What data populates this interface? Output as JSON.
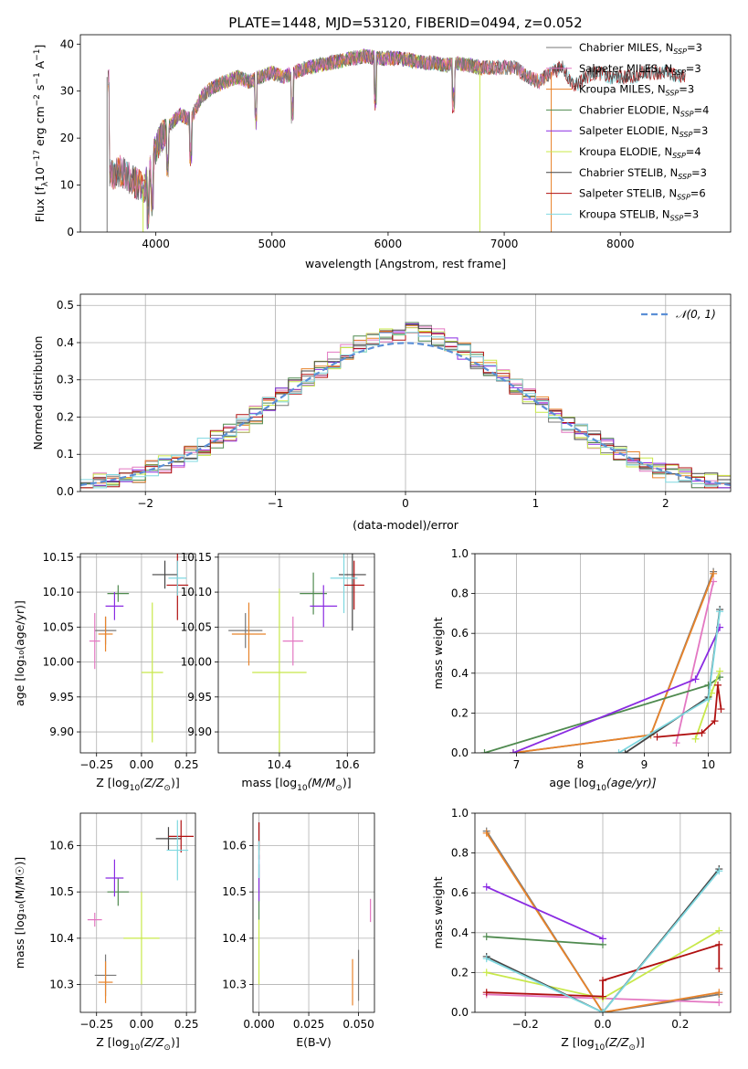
{
  "figure_title": "PLATE=1448, MJD=53120, FIBERID=0494, z=0.052",
  "colors": {
    "Chabrier MILES": "#777777",
    "Salpeter MILES": "#e377c2",
    "Kroupa MILES": "#e8832a",
    "Chabrier ELODIE": "#4f8a4f",
    "Salpeter ELODIE": "#8a2be2",
    "Kroupa ELODIE": "#c8e84a",
    "Chabrier STELIB": "#444444",
    "Salpeter STELIB": "#b01010",
    "Kroupa STELIB": "#7fd8e0",
    "gauss": "#5b8fd6"
  },
  "chart_data": [
    {
      "id": "spectrum",
      "type": "line",
      "xlabel": "wavelength [Angstrom, rest frame]",
      "ylabel": "Flux [f_λ 10^-17 erg cm^-2 s^-1 A^-1]",
      "xlim": [
        3350,
        8950
      ],
      "ylim": [
        0,
        42
      ],
      "xticks": [
        4000,
        5000,
        6000,
        7000,
        8000
      ],
      "yticks": [
        0,
        10,
        20,
        30,
        40
      ],
      "legend_position": "top-right",
      "legend": [
        {
          "name": "Chabrier MILES",
          "label_main": "Chabrier MILES, N",
          "sub": "SSP",
          "tail": "=3"
        },
        {
          "name": "Salpeter MILES",
          "label_main": "Salpeter MILES, N",
          "sub": "SSP",
          "tail": "=3"
        },
        {
          "name": "Kroupa MILES",
          "label_main": "Kroupa MILES, N",
          "sub": "SSP",
          "tail": "=3"
        },
        {
          "name": "Chabrier ELODIE",
          "label_main": "Chabrier ELODIE, N",
          "sub": "SSP",
          "tail": "=4"
        },
        {
          "name": "Salpeter ELODIE",
          "label_main": "Salpeter ELODIE, N",
          "sub": "SSP",
          "tail": "=3"
        },
        {
          "name": "Kroupa ELODIE",
          "label_main": "Kroupa ELODIE, N",
          "sub": "SSP",
          "tail": "=4"
        },
        {
          "name": "Chabrier STELIB",
          "label_main": "Chabrier STELIB, N",
          "sub": "SSP",
          "tail": "=3"
        },
        {
          "name": "Salpeter STELIB",
          "label_main": "Salpeter STELIB, N",
          "sub": "SSP",
          "tail": "=6"
        },
        {
          "name": "Kroupa STELIB",
          "label_main": "Kroupa STELIB, N",
          "sub": "SSP",
          "tail": "=3"
        }
      ],
      "continuum": [
        [
          3600,
          12
        ],
        [
          3700,
          13
        ],
        [
          3800,
          11
        ],
        [
          3900,
          9
        ],
        [
          3950,
          13
        ],
        [
          4000,
          18
        ],
        [
          4100,
          22
        ],
        [
          4200,
          25
        ],
        [
          4300,
          24
        ],
        [
          4400,
          29
        ],
        [
          4500,
          31
        ],
        [
          4600,
          32
        ],
        [
          4700,
          33
        ],
        [
          4800,
          32
        ],
        [
          4900,
          33
        ],
        [
          5000,
          34
        ],
        [
          5100,
          33
        ],
        [
          5200,
          34
        ],
        [
          5300,
          35
        ],
        [
          5400,
          35.5
        ],
        [
          5500,
          36
        ],
        [
          5600,
          36.5
        ],
        [
          5700,
          37
        ],
        [
          5800,
          37.5
        ],
        [
          5900,
          37
        ],
        [
          6000,
          37
        ],
        [
          6100,
          37
        ],
        [
          6200,
          36.5
        ],
        [
          6300,
          36
        ],
        [
          6400,
          36
        ],
        [
          6500,
          35.5
        ],
        [
          6600,
          36
        ],
        [
          6700,
          35.5
        ],
        [
          6800,
          35
        ],
        [
          6900,
          35
        ],
        [
          7000,
          35
        ],
        [
          7100,
          35
        ],
        [
          7200,
          33
        ],
        [
          7300,
          32
        ],
        [
          7400,
          34
        ],
        [
          7500,
          35
        ],
        [
          7600,
          31
        ],
        [
          7700,
          33
        ],
        [
          7800,
          34
        ],
        [
          7900,
          33
        ],
        [
          8000,
          33
        ],
        [
          8100,
          33
        ],
        [
          8200,
          34
        ],
        [
          8300,
          34
        ],
        [
          8400,
          34
        ],
        [
          8500,
          33
        ]
      ],
      "absorption_lines": [
        3934,
        3969,
        4102,
        4300,
        4861,
        5175,
        5890,
        6563
      ],
      "spikes": [
        {
          "series": "Kroupa ELODIE",
          "x": 6790,
          "y": 0
        },
        {
          "series": "Kroupa MILES",
          "x": 7405,
          "y": 0
        },
        {
          "series": "Kroupa ELODIE",
          "x": 3890,
          "y": 0
        },
        {
          "series": "Chabrier MILES",
          "x": 3580,
          "y": 0
        }
      ]
    },
    {
      "id": "residuals",
      "type": "bar",
      "xlabel": "(data-model)/error",
      "ylabel": "Normed distribution",
      "xlim": [
        -2.5,
        2.5
      ],
      "ylim": [
        0,
        0.53
      ],
      "xticks": [
        -2,
        -1,
        0,
        1,
        2
      ],
      "yticks": [
        0.0,
        0.1,
        0.2,
        0.3,
        0.4,
        0.5
      ],
      "grid": true,
      "legend_position": "top-right",
      "legend": [
        {
          "name": "gauss",
          "label": "𝒩(0, 1)"
        }
      ],
      "bin_width": 0.1
    },
    {
      "id": "age_vs_Z",
      "type": "scatter",
      "xlabel_main": "Z [log",
      "xlabel_sub": "10",
      "xlabel_tail": "(Z/Z",
      "ylabel": "age  [log₁₀(age/yr)]",
      "xlim": [
        -0.34,
        0.3
      ],
      "ylim": [
        9.87,
        10.155
      ],
      "xticks": [
        -0.25,
        0.0,
        0.25
      ],
      "xticklabels": [
        "−0.25",
        "0.00",
        "0.25"
      ],
      "yticks": [
        9.9,
        9.95,
        10.0,
        10.05,
        10.1,
        10.15
      ],
      "points": [
        {
          "series": "Chabrier MILES",
          "x": -0.2,
          "y": 10.045,
          "xerr": 0.06,
          "yerr": 0.02
        },
        {
          "series": "Salpeter MILES",
          "x": -0.26,
          "y": 10.03,
          "xerr": 0.03,
          "yerr": 0.04
        },
        {
          "series": "Kroupa MILES",
          "x": -0.2,
          "y": 10.04,
          "xerr": 0.04,
          "yerr": 0.025
        },
        {
          "series": "Chabrier ELODIE",
          "x": -0.13,
          "y": 10.098,
          "xerr": 0.06,
          "yerr": 0.012
        },
        {
          "series": "Salpeter ELODIE",
          "x": -0.15,
          "y": 10.08,
          "xerr": 0.05,
          "yerr": 0.02
        },
        {
          "series": "Kroupa ELODIE",
          "x": 0.06,
          "y": 9.985,
          "xerr": 0.06,
          "yerr": 0.1
        },
        {
          "series": "Chabrier STELIB",
          "x": 0.13,
          "y": 10.125,
          "xerr": 0.07,
          "yerr": 0.02
        },
        {
          "series": "Salpeter STELIB",
          "x": 0.2,
          "y": 10.11,
          "xerr": 0.06,
          "yerr": 0.05
        },
        {
          "series": "Kroupa STELIB",
          "x": 0.2,
          "y": 10.12,
          "xerr": 0.05,
          "yerr": 0.025
        }
      ]
    },
    {
      "id": "age_vs_mass",
      "type": "scatter",
      "xlabel_main": "mass [log",
      "xlabel_sub": "10",
      "xlabel_tail": "(M/M",
      "xlim": [
        10.22,
        10.68
      ],
      "ylim": [
        9.87,
        10.155
      ],
      "xticks": [
        10.4,
        10.6
      ],
      "yticks": [
        9.9,
        9.95,
        10.0,
        10.05,
        10.1,
        10.15
      ],
      "points": [
        {
          "series": "Chabrier MILES",
          "x": 10.3,
          "y": 10.045,
          "xerr": 0.05,
          "yerr": 0.025
        },
        {
          "series": "Salpeter MILES",
          "x": 10.44,
          "y": 10.03,
          "xerr": 0.03,
          "yerr": 0.035
        },
        {
          "series": "Kroupa MILES",
          "x": 10.31,
          "y": 10.04,
          "xerr": 0.05,
          "yerr": 0.045
        },
        {
          "series": "Chabrier ELODIE",
          "x": 10.5,
          "y": 10.098,
          "xerr": 0.04,
          "yerr": 0.03
        },
        {
          "series": "Salpeter ELODIE",
          "x": 10.53,
          "y": 10.08,
          "xerr": 0.04,
          "yerr": 0.03
        },
        {
          "series": "Kroupa ELODIE",
          "x": 10.4,
          "y": 9.985,
          "xerr": 0.08,
          "yerr": 0.12
        },
        {
          "series": "Chabrier STELIB",
          "x": 10.615,
          "y": 10.125,
          "xerr": 0.04,
          "yerr": 0.08
        },
        {
          "series": "Salpeter STELIB",
          "x": 10.62,
          "y": 10.11,
          "xerr": 0.03,
          "yerr": 0.035
        },
        {
          "series": "Kroupa STELIB",
          "x": 10.59,
          "y": 10.12,
          "xerr": 0.04,
          "yerr": 0.05
        }
      ]
    },
    {
      "id": "weight_vs_age",
      "type": "line",
      "xlabel_main": "age  [log",
      "xlabel_sub": "10",
      "xlabel_tail": "(age/yr)]",
      "ylabel": "mass weight",
      "xlim": [
        6.35,
        10.35
      ],
      "ylim": [
        0,
        1
      ],
      "xticks": [
        7,
        8,
        9,
        10
      ],
      "yticks": [
        0.0,
        0.2,
        0.4,
        0.6,
        0.8,
        1.0
      ],
      "series": [
        {
          "name": "Chabrier MILES",
          "x": [
            6.95,
            9.1,
            10.08
          ],
          "y": [
            0.0,
            0.09,
            0.91
          ]
        },
        {
          "name": "Salpeter MILES",
          "x": [
            9.5,
            10.08
          ],
          "y": [
            0.05,
            0.86
          ]
        },
        {
          "name": "Kroupa MILES",
          "x": [
            6.95,
            9.1,
            10.08
          ],
          "y": [
            0.0,
            0.09,
            0.9
          ]
        },
        {
          "name": "Chabrier ELODIE",
          "x": [
            6.5,
            10.0,
            10.18
          ],
          "y": [
            0.0,
            0.34,
            0.38
          ]
        },
        {
          "name": "Salpeter ELODIE",
          "x": [
            6.95,
            9.8,
            10.18
          ],
          "y": [
            0.0,
            0.37,
            0.63
          ]
        },
        {
          "name": "Kroupa ELODIE",
          "x": [
            9.8,
            10.05,
            10.18
          ],
          "y": [
            0.07,
            0.3,
            0.41
          ]
        },
        {
          "name": "Chabrier STELIB",
          "x": [
            8.7,
            10.0,
            10.18
          ],
          "y": [
            0.0,
            0.28,
            0.72
          ]
        },
        {
          "name": "Salpeter STELIB",
          "x": [
            9.2,
            9.9,
            10.1,
            10.15,
            10.2
          ],
          "y": [
            0.08,
            0.1,
            0.16,
            0.34,
            0.22
          ]
        },
        {
          "name": "Kroupa STELIB",
          "x": [
            8.6,
            10.0,
            10.18
          ],
          "y": [
            0.0,
            0.27,
            0.71
          ]
        }
      ]
    },
    {
      "id": "mass_vs_Z",
      "type": "scatter",
      "xlabel_main": "Z [log",
      "xlabel_sub": "10",
      "xlabel_tail": "(Z/Z",
      "ylabel": "mass [log₁₀(M/M☉)]",
      "xlim": [
        -0.34,
        0.3
      ],
      "ylim": [
        10.24,
        10.67
      ],
      "xticks": [
        -0.25,
        0.0,
        0.25
      ],
      "xticklabels": [
        "−0.25",
        "0.00",
        "0.25"
      ],
      "yticks": [
        10.3,
        10.4,
        10.5,
        10.6
      ],
      "points": [
        {
          "series": "Chabrier MILES",
          "x": -0.2,
          "y": 10.32,
          "xerr": 0.06,
          "yerr": 0.045
        },
        {
          "series": "Salpeter MILES",
          "x": -0.26,
          "y": 10.44,
          "xerr": 0.04,
          "yerr": 0.015
        },
        {
          "series": "Kroupa MILES",
          "x": -0.2,
          "y": 10.305,
          "xerr": 0.04,
          "yerr": 0.045
        },
        {
          "series": "Chabrier ELODIE",
          "x": -0.13,
          "y": 10.5,
          "xerr": 0.06,
          "yerr": 0.03
        },
        {
          "series": "Salpeter ELODIE",
          "x": -0.15,
          "y": 10.53,
          "xerr": 0.05,
          "yerr": 0.04
        },
        {
          "series": "Kroupa ELODIE",
          "x": 0.0,
          "y": 10.4,
          "xerr": 0.1,
          "yerr": 0.1
        },
        {
          "series": "Chabrier STELIB",
          "x": 0.15,
          "y": 10.615,
          "xerr": 0.07,
          "yerr": 0.025
        },
        {
          "series": "Salpeter STELIB",
          "x": 0.22,
          "y": 10.62,
          "xerr": 0.07,
          "yerr": 0.035
        },
        {
          "series": "Kroupa STELIB",
          "x": 0.2,
          "y": 10.59,
          "xerr": 0.06,
          "yerr": 0.065
        }
      ]
    },
    {
      "id": "mass_vs_ebv",
      "type": "scatter",
      "xlabel": "E(B-V)",
      "xlim": [
        -0.003,
        0.058
      ],
      "ylim": [
        10.24,
        10.67
      ],
      "xticks": [
        0.0,
        0.025,
        0.05
      ],
      "xticklabels": [
        "0.000",
        "0.025",
        "0.050"
      ],
      "yticks": [
        10.3,
        10.4,
        10.5,
        10.6
      ],
      "points": [
        {
          "series": "Chabrier MILES",
          "x": 0.05,
          "y": 10.32,
          "yerr": 0.055
        },
        {
          "series": "Salpeter MILES",
          "x": 0.056,
          "y": 10.46,
          "yerr": 0.025
        },
        {
          "series": "Kroupa MILES",
          "x": 0.047,
          "y": 10.305,
          "yerr": 0.05
        },
        {
          "series": "Chabrier ELODIE",
          "x": 0.0,
          "y": 10.5,
          "yerr": 0.06
        },
        {
          "series": "Salpeter ELODIE",
          "x": 0.0,
          "y": 10.53,
          "yerr": 0.05
        },
        {
          "series": "Kroupa ELODIE",
          "x": 0.0,
          "y": 10.37,
          "yerr": 0.07
        },
        {
          "series": "Chabrier STELIB",
          "x": 0.0,
          "y": 10.62,
          "yerr": 0.03
        },
        {
          "series": "Salpeter STELIB",
          "x": 0.0,
          "y": 10.61,
          "yerr": 0.04
        },
        {
          "series": "Kroupa STELIB",
          "x": 0.0,
          "y": 10.57,
          "yerr": 0.04
        }
      ]
    },
    {
      "id": "weight_vs_Z",
      "type": "line",
      "xlabel_main": "Z [log",
      "xlabel_sub": "10",
      "xlabel_tail": "(Z/Z",
      "ylabel": "mass weight",
      "xlim": [
        -0.33,
        0.33
      ],
      "ylim": [
        0,
        1
      ],
      "xticks": [
        -0.2,
        0.0,
        0.2
      ],
      "xticklabels": [
        "−0.2",
        "0.0",
        "0.2"
      ],
      "yticks": [
        0.0,
        0.2,
        0.4,
        0.6,
        0.8,
        1.0
      ],
      "series": [
        {
          "name": "Chabrier MILES",
          "x": [
            -0.3,
            0.0,
            0.3
          ],
          "y": [
            0.91,
            0.0,
            0.09
          ]
        },
        {
          "name": "Salpeter MILES",
          "x": [
            -0.3,
            0.3
          ],
          "y": [
            0.09,
            0.05
          ]
        },
        {
          "name": "Kroupa MILES",
          "x": [
            -0.3,
            0.0,
            0.3
          ],
          "y": [
            0.9,
            0.0,
            0.1
          ]
        },
        {
          "name": "Chabrier ELODIE",
          "x": [
            -0.3,
            0.0
          ],
          "y": [
            0.38,
            0.34
          ]
        },
        {
          "name": "Salpeter ELODIE",
          "x": [
            -0.3,
            0.0
          ],
          "y": [
            0.63,
            0.37
          ]
        },
        {
          "name": "Kroupa ELODIE",
          "x": [
            -0.3,
            0.0,
            0.3
          ],
          "y": [
            0.2,
            0.07,
            0.41
          ]
        },
        {
          "name": "Chabrier STELIB",
          "x": [
            -0.3,
            0.0,
            0.3
          ],
          "y": [
            0.28,
            0.0,
            0.72
          ]
        },
        {
          "name": "Salpeter STELIB",
          "x": [
            -0.3,
            0.0,
            0.0,
            0.3,
            0.3
          ],
          "y": [
            0.1,
            0.08,
            0.16,
            0.34,
            0.22
          ]
        },
        {
          "name": "Kroupa STELIB",
          "x": [
            -0.3,
            0.0,
            0.3
          ],
          "y": [
            0.27,
            0.0,
            0.71
          ]
        }
      ]
    }
  ]
}
